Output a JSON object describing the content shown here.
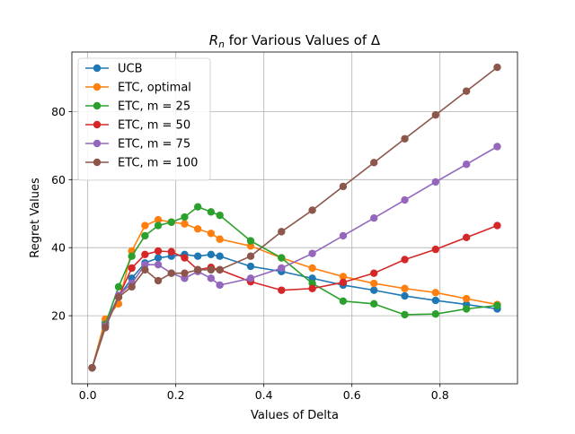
{
  "chart_data": {
    "type": "line",
    "title_main": "R",
    "title_sub": "n",
    "title_rest": " for Various Values of Δ",
    "xlabel": "Values of Delta",
    "ylabel": "Regret Values",
    "xlim": [
      -0.036,
      0.976
    ],
    "ylim": [
      0,
      97.5
    ],
    "xticks": [
      0.0,
      0.2,
      0.4,
      0.6,
      0.8
    ],
    "xtick_labels": [
      "0.0",
      "0.2",
      "0.4",
      "0.6",
      "0.8"
    ],
    "yticks": [
      20,
      40,
      60,
      80
    ],
    "ytick_labels": [
      "20",
      "40",
      "60",
      "80"
    ],
    "grid": true,
    "legend_position": "top-left",
    "x": [
      0.01,
      0.04,
      0.07,
      0.1,
      0.13,
      0.16,
      0.19,
      0.22,
      0.25,
      0.28,
      0.3,
      0.37,
      0.44,
      0.51,
      0.58,
      0.65,
      0.72,
      0.79,
      0.86,
      0.93
    ],
    "series": [
      {
        "name": "UCB",
        "color": "#1f77b4",
        "values": [
          4.7,
          18.0,
          25.5,
          31.0,
          35.5,
          37.0,
          37.5,
          38.0,
          37.5,
          38.0,
          37.5,
          34.5,
          33.0,
          31.0,
          29.0,
          27.5,
          25.8,
          24.5,
          23.3,
          22.0
        ]
      },
      {
        "name": "ETC, optimal",
        "color": "#ff7f0e",
        "values": [
          4.7,
          19.0,
          23.5,
          39.0,
          46.5,
          48.2,
          47.5,
          47.0,
          45.5,
          44.2,
          42.5,
          40.5,
          37.0,
          34.0,
          31.5,
          29.5,
          28.0,
          26.8,
          25.0,
          23.3
        ]
      },
      {
        "name": "ETC, m = 25",
        "color": "#2ca02c",
        "values": [
          4.7,
          17.5,
          28.5,
          37.5,
          43.5,
          46.5,
          47.5,
          49.0,
          52.0,
          50.5,
          49.5,
          42.0,
          37.0,
          29.5,
          24.3,
          23.5,
          20.3,
          20.5,
          22.0,
          23.0
        ]
      },
      {
        "name": "ETC, m = 50",
        "color": "#d62728",
        "values": [
          4.7,
          17.0,
          25.5,
          34.0,
          38.0,
          39.0,
          38.8,
          37.0,
          33.5,
          34.2,
          33.5,
          30.0,
          27.5,
          28.0,
          29.8,
          32.5,
          36.5,
          39.5,
          43.0,
          46.5
        ]
      },
      {
        "name": "ETC, m = 75",
        "color": "#9467bd",
        "values": [
          4.7,
          17.0,
          26.0,
          29.5,
          35.0,
          35.0,
          32.5,
          31.0,
          33.0,
          31.0,
          29.0,
          31.0,
          34.0,
          38.3,
          43.5,
          48.7,
          54.0,
          59.3,
          64.5,
          69.7
        ]
      },
      {
        "name": "ETC, m = 100",
        "color": "#8c564b",
        "values": [
          4.7,
          16.5,
          25.5,
          28.5,
          33.5,
          30.3,
          32.5,
          32.5,
          33.5,
          33.5,
          33.5,
          37.5,
          44.7,
          51.0,
          58.0,
          65.0,
          72.0,
          79.0,
          86.0,
          93.0
        ]
      }
    ]
  }
}
